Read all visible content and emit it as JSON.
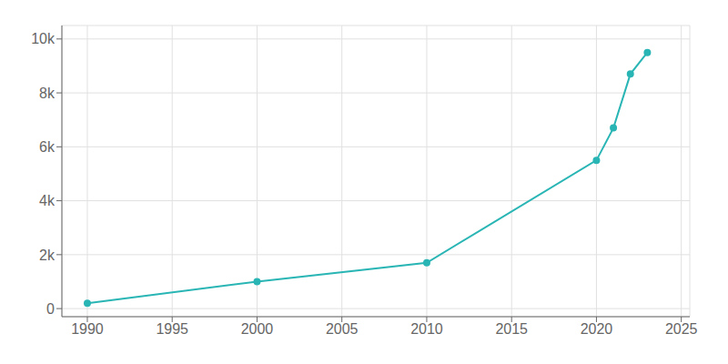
{
  "chart_data": {
    "type": "line",
    "x": [
      1990,
      2000,
      2010,
      2020,
      2021,
      2022,
      2023
    ],
    "values": [
      200,
      1000,
      1700,
      5500,
      6700,
      8700,
      9500
    ],
    "color": "#2ab5b5",
    "marker": "circle",
    "xlim": [
      1988.5,
      2025.5
    ],
    "ylim": [
      -300,
      10500
    ],
    "xticks": [
      1990,
      1995,
      2000,
      2005,
      2010,
      2015,
      2020,
      2025
    ],
    "yticks": [
      0,
      {
        "value": 2000,
        "label": "2k"
      },
      {
        "value": 4000,
        "label": "4k"
      },
      {
        "value": 6000,
        "label": "6k"
      },
      {
        "value": 8000,
        "label": "8k"
      },
      {
        "value": 10000,
        "label": "10k"
      }
    ],
    "grid": true
  }
}
